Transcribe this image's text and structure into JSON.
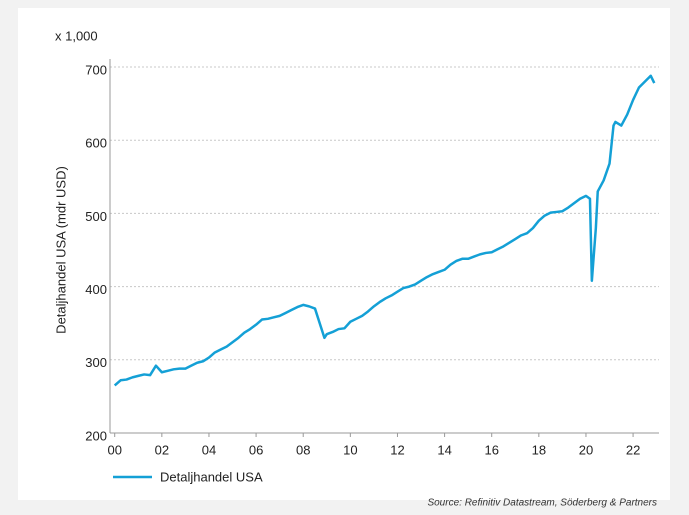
{
  "chart_data": {
    "type": "line",
    "unit_label": "x 1,000",
    "y_label": "Detaljhandel USA (mdr USD)",
    "source": "Source: Refinitiv Datastream, Söderberg & Partners",
    "xlim": [
      1999.8,
      2023.1
    ],
    "xticks": [
      {
        "value": 2000,
        "label": "00"
      },
      {
        "value": 2002,
        "label": "02"
      },
      {
        "value": 2004,
        "label": "04"
      },
      {
        "value": 2006,
        "label": "06"
      },
      {
        "value": 2008,
        "label": "08"
      },
      {
        "value": 2010,
        "label": "10"
      },
      {
        "value": 2012,
        "label": "12"
      },
      {
        "value": 2014,
        "label": "14"
      },
      {
        "value": 2016,
        "label": "16"
      },
      {
        "value": 2018,
        "label": "18"
      },
      {
        "value": 2020,
        "label": "20"
      },
      {
        "value": 2022,
        "label": "22"
      }
    ],
    "ylim": [
      200,
      700
    ],
    "yticks": [
      200,
      300,
      400,
      500,
      600,
      700
    ],
    "grid": true,
    "x": [
      2000,
      2000.25,
      2000.5,
      2000.75,
      2001,
      2001.25,
      2001.5,
      2001.75,
      2002,
      2002.25,
      2002.5,
      2002.75,
      2003,
      2003.25,
      2003.5,
      2003.75,
      2004,
      2004.25,
      2004.5,
      2004.75,
      2005,
      2005.25,
      2005.5,
      2005.75,
      2006,
      2006.25,
      2006.5,
      2006.75,
      2007,
      2007.25,
      2007.5,
      2007.75,
      2008,
      2008.25,
      2008.5,
      2008.75,
      2008.9,
      2009,
      2009.25,
      2009.5,
      2009.75,
      2010,
      2010.25,
      2010.5,
      2010.75,
      2011,
      2011.25,
      2011.5,
      2011.75,
      2012,
      2012.25,
      2012.5,
      2012.75,
      2013,
      2013.25,
      2013.5,
      2013.75,
      2014,
      2014.25,
      2014.5,
      2014.75,
      2015,
      2015.25,
      2015.5,
      2015.75,
      2016,
      2016.25,
      2016.5,
      2016.75,
      2017,
      2017.25,
      2017.5,
      2017.75,
      2018,
      2018.25,
      2018.5,
      2018.75,
      2019,
      2019.25,
      2019.5,
      2019.75,
      2020,
      2020.17,
      2020.25,
      2020.42,
      2020.5,
      2020.75,
      2021,
      2021.17,
      2021.25,
      2021.5,
      2021.75,
      2022,
      2022.25,
      2022.5,
      2022.75,
      2022.9
    ],
    "series": [
      {
        "name": "Detaljhandel USA",
        "color": "#14a0d6",
        "values": [
          265,
          272,
          273,
          276,
          278,
          280,
          279,
          292,
          283,
          285,
          287,
          288,
          288,
          292,
          296,
          298,
          303,
          310,
          314,
          318,
          324,
          330,
          337,
          342,
          348,
          355,
          356,
          358,
          360,
          364,
          368,
          372,
          375,
          373,
          370,
          345,
          330,
          335,
          338,
          342,
          343,
          352,
          356,
          360,
          366,
          373,
          379,
          384,
          388,
          393,
          398,
          400,
          403,
          408,
          413,
          417,
          420,
          423,
          430,
          435,
          438,
          438,
          441,
          444,
          446,
          447,
          451,
          455,
          460,
          465,
          470,
          473,
          480,
          490,
          497,
          501,
          502,
          503,
          508,
          514,
          520,
          524,
          520,
          408,
          480,
          530,
          545,
          568,
          620,
          625,
          620,
          635,
          655,
          672,
          680,
          688,
          678
        ]
      }
    ]
  }
}
